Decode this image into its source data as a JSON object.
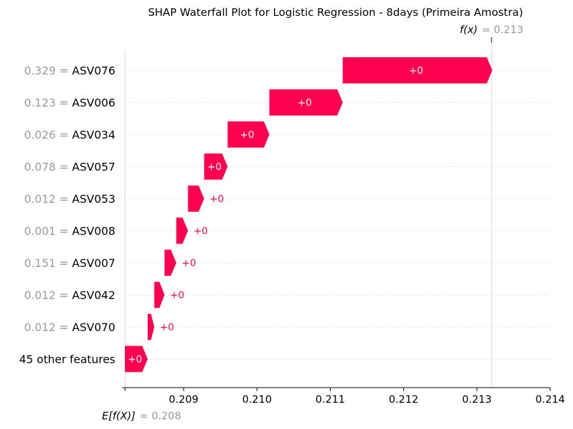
{
  "chart_data": {
    "type": "waterfall",
    "title": "SHAP Waterfall Plot for Logistic Regression - 8days (Primeira Amostra)",
    "xlim": [
      0.2082,
      0.214
    ],
    "x_ticks": [
      0.209,
      0.21,
      0.211,
      0.212,
      0.213,
      0.214
    ],
    "x_tick_labels": [
      "0.209",
      "0.210",
      "0.211",
      "0.212",
      "0.213",
      "0.214"
    ],
    "base_value": 0.2082,
    "base_label_prefix": "E[f(X)]",
    "base_label_value": "= 0.208",
    "final_value": 0.2132,
    "final_label_prefix": "f(x)",
    "final_label_value": "= 0.213",
    "bar_color": "#ff0051",
    "features": [
      {
        "value": "0.329",
        "name": "ASV076",
        "start": 0.21117,
        "end": 0.21321,
        "label": "+0"
      },
      {
        "value": "0.123",
        "name": "ASV006",
        "start": 0.21017,
        "end": 0.21117,
        "label": "+0"
      },
      {
        "value": "0.026",
        "name": "ASV034",
        "start": 0.2096,
        "end": 0.21017,
        "label": "+0"
      },
      {
        "value": "0.078",
        "name": "ASV057",
        "start": 0.20928,
        "end": 0.2096,
        "label": "+0"
      },
      {
        "value": "0.012",
        "name": "ASV053",
        "start": 0.20906,
        "end": 0.20928,
        "label": "+0"
      },
      {
        "value": "0.001",
        "name": "ASV008",
        "start": 0.2089,
        "end": 0.20906,
        "label": "+0"
      },
      {
        "value": "0.151",
        "name": "ASV007",
        "start": 0.20874,
        "end": 0.2089,
        "label": "+0"
      },
      {
        "value": "0.012",
        "name": "ASV042",
        "start": 0.2086,
        "end": 0.20874,
        "label": "+0"
      },
      {
        "value": "0.012",
        "name": "ASV070",
        "start": 0.20851,
        "end": 0.2086,
        "label": "+0"
      },
      {
        "value": "",
        "name": "45 other features",
        "start": 0.2082,
        "end": 0.20851,
        "label": "+0"
      }
    ]
  }
}
